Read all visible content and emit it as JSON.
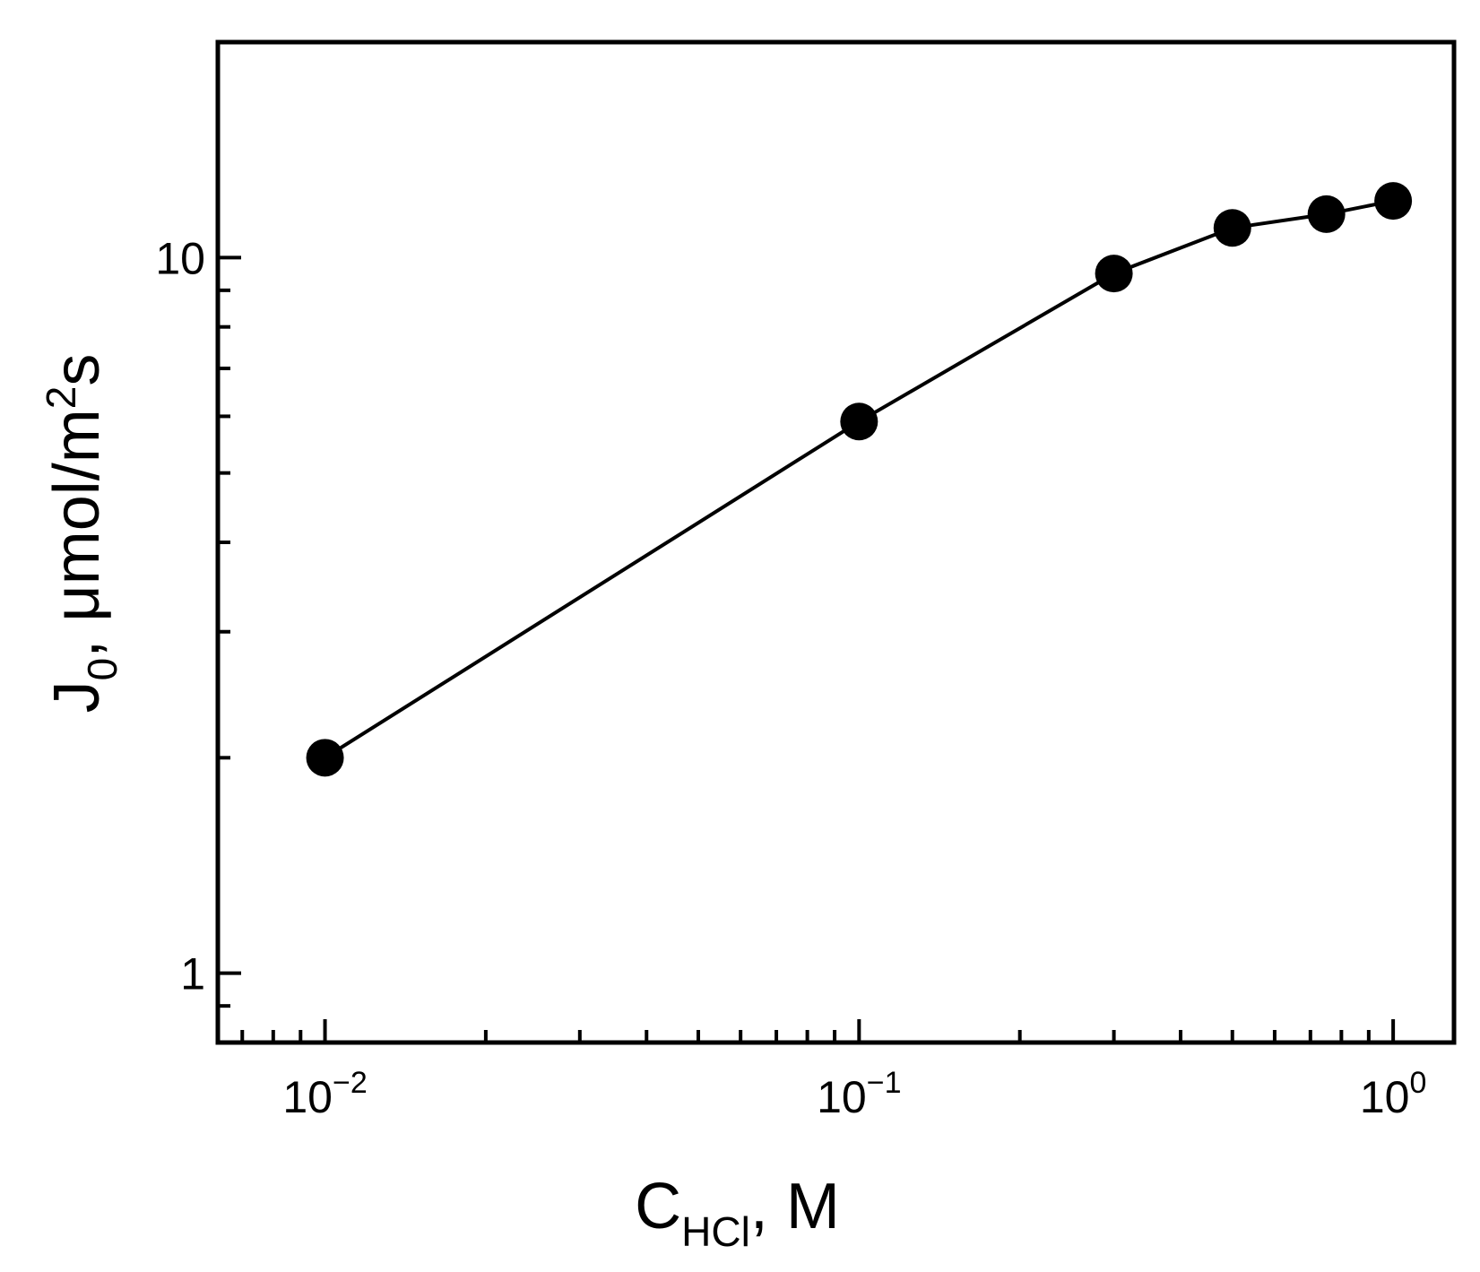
{
  "chart_data": {
    "type": "scatter",
    "xlabel": {
      "main": "C",
      "sub": "HCl",
      "rest": ", M"
    },
    "ylabel": {
      "main": "J",
      "sub": "0",
      "rest": ", μmol/m",
      "sup": "2",
      "tail": "s"
    },
    "xscale": "log",
    "yscale": "log",
    "xlim": [
      0.0063,
      1.3
    ],
    "ylim": [
      0.8,
      20
    ],
    "x_ticks": [
      {
        "value": 0.01,
        "base": "10",
        "exp": "−2"
      },
      {
        "value": 0.1,
        "base": "10",
        "exp": "−1"
      },
      {
        "value": 1,
        "base": "10",
        "exp": "0"
      }
    ],
    "y_ticks": [
      {
        "value": 1,
        "label": "1"
      },
      {
        "value": 10,
        "label": "10"
      }
    ],
    "grid": false,
    "series": [
      {
        "x": [
          0.01,
          0.1,
          0.3,
          0.5,
          0.75,
          1.0
        ],
        "y": [
          2.0,
          5.9,
          9.5,
          11.0,
          11.5,
          12.0
        ],
        "marker": "filled-circle",
        "line": "solid",
        "color": "#000000"
      }
    ]
  }
}
